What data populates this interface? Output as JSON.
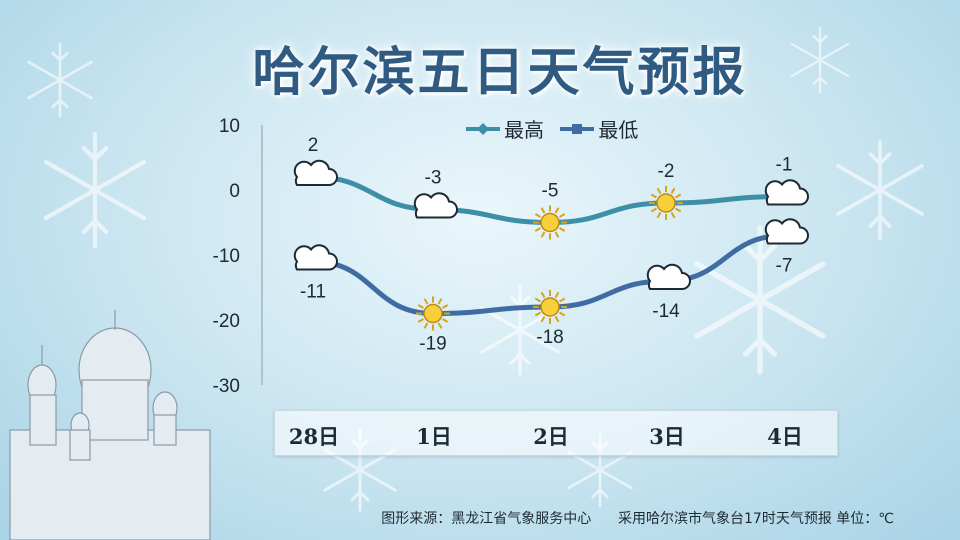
{
  "title": "哈尔滨五日天气预报",
  "footer": {
    "source": "图形来源：黑龙江省气象服务中心",
    "note": "采用哈尔滨市气象台17时天气预报 单位：℃"
  },
  "colors": {
    "high": "#3d8fa8",
    "low": "#3f6da3",
    "title": "#2f5b82"
  },
  "chart_data": {
    "type": "line",
    "categories": [
      "28日",
      "1日",
      "2日",
      "3日",
      "4日"
    ],
    "series": [
      {
        "name": "最高",
        "values": [
          2,
          -3,
          -5,
          -2,
          -1
        ],
        "icons": [
          "cloud-icon",
          "cloud-icon",
          "sun-icon",
          "sun-icon",
          "cloud-icon"
        ]
      },
      {
        "name": "最低",
        "values": [
          -11,
          -19,
          -18,
          -14,
          -7
        ],
        "icons": [
          "cloud-icon",
          "sun-icon",
          "sun-icon",
          "cloud-icon",
          "cloud-icon"
        ]
      }
    ],
    "yticks": [
      10,
      0,
      -10,
      -20,
      -30
    ],
    "ylim": [
      -30,
      10
    ],
    "legend": "top-center"
  }
}
